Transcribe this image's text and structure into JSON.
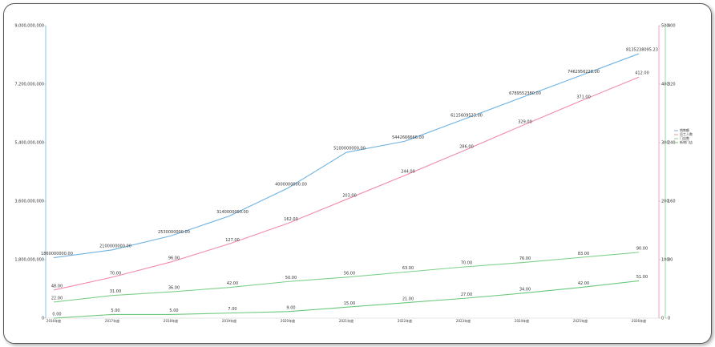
{
  "chart_data": {
    "type": "line",
    "categories": [
      "2016年度",
      "2017年度",
      "2018年度",
      "2019年度",
      "2020年度",
      "2021年度",
      "2022年度",
      "2023年度",
      "2024年度",
      "2025年度",
      "2026年度"
    ],
    "ylim": [
      0,
      9000000000
    ],
    "yticks": [
      0,
      {
        "value": 1800000000,
        "label": "1,800,000,000"
      },
      {
        "value": 3600000000,
        "label": "3,600,000,000"
      },
      {
        "value": 5400000000,
        "label": "5,400,000,000"
      },
      {
        "value": 7200000000,
        "label": "7,200,000,000"
      },
      {
        "value": 9000000000,
        "label": "9,000,000,000"
      }
    ],
    "y2lim": [
      0,
      500
    ],
    "y2ticks": [
      0,
      100,
      200,
      300,
      400,
      500
    ],
    "y3lim": [
      0,
      400
    ],
    "y3ticks": [
      0,
      80,
      160,
      240,
      320,
      400
    ],
    "series": [
      {
        "name": "销售额",
        "color": "#6fb3e0",
        "axis": "y",
        "values": [
          1860000000,
          2100000000,
          2530000000,
          3140000000,
          4000000000,
          5100000000,
          5442666666,
          6115609523,
          6789552380,
          7462956228,
          8135238095.23
        ],
        "value_labels": [
          "1860000000.00",
          "2100000000.00",
          "2530000000.00",
          "3140000000.00",
          "4000000000.00",
          "5100000000.00",
          "5442666666.00",
          "6115609523.00",
          "6789552380.00",
          "7462956228.00",
          "8135238095.23"
        ]
      },
      {
        "name": "员工人数",
        "color": "#f28ca8",
        "axis": "y2",
        "values": [
          48,
          70,
          96,
          127,
          162,
          203,
          244,
          286,
          329,
          371,
          412
        ],
        "value_labels": [
          "48.00",
          "70.00",
          "96.00",
          "127.00",
          "162.00",
          "203.00",
          "244.00",
          "286.00",
          "329.00",
          "371.00",
          "412.00"
        ]
      },
      {
        "name": "门店数",
        "color": "#7dd08a",
        "axis": "y3",
        "values": [
          22,
          31,
          36,
          42,
          50,
          56,
          63,
          70,
          76,
          83,
          90
        ],
        "value_labels": [
          "22.00",
          "31.00",
          "36.00",
          "42.00",
          "50.00",
          "56.00",
          "63.00",
          "70.00",
          "76.00",
          "83.00",
          "90.00"
        ]
      },
      {
        "name": "新增门店",
        "color": "#6cc97c",
        "axis": "y3",
        "values": [
          0,
          5,
          5,
          7,
          9,
          15,
          21,
          27,
          34,
          42,
          51
        ],
        "value_labels": [
          "0.00",
          "5.00",
          "5.00",
          "7.00",
          "9.00",
          "15.00",
          "21.00",
          "27.00",
          "34.00",
          "42.00",
          "51.00"
        ]
      }
    ]
  }
}
